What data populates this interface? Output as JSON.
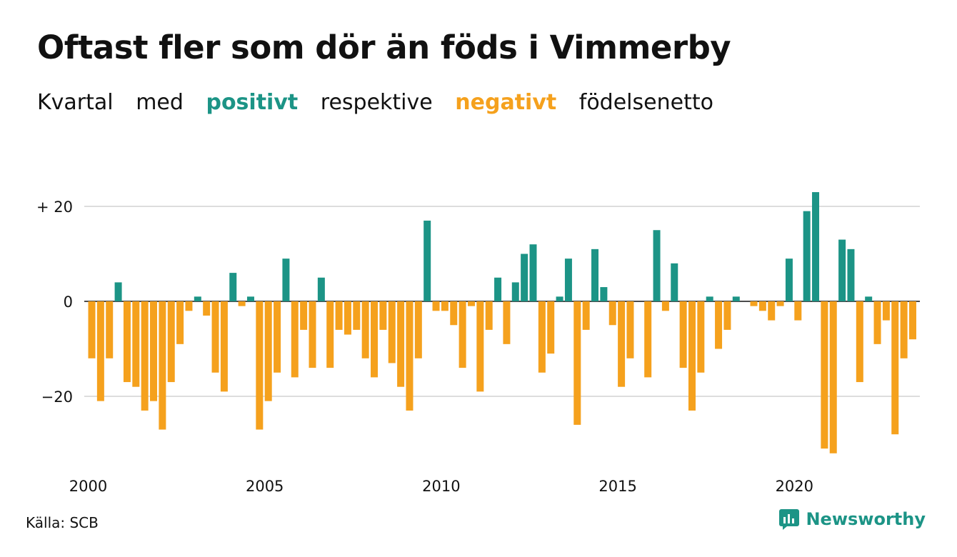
{
  "title": "Oftast fler som dör än föds i Vimmerby",
  "subtitle": {
    "part1": "Kvartal",
    "part2": "med",
    "positive": "positivt",
    "part3": "respektive",
    "negative": "negativt",
    "part4": "födelsenetto"
  },
  "colors": {
    "positive": "#1c9486",
    "negative": "#f5a11d",
    "grid": "#dddddd",
    "axis": "#111111"
  },
  "source": "Källa: SCB",
  "brand": {
    "name": "Newsworthy",
    "icon": "newsworthy-logo-icon"
  },
  "chart_data": {
    "type": "bar",
    "title": "Oftast fler som dör än föds i Vimmerby",
    "x_start": 2000,
    "periods_per_year": 4,
    "x_tick_labels": [
      "2000",
      "2005",
      "2010",
      "2015",
      "2020"
    ],
    "x_ticks": [
      2000,
      2005,
      2010,
      2015,
      2020
    ],
    "y_tick_labels": [
      "+ 20",
      "0",
      "−20"
    ],
    "y_ticks": [
      20,
      0,
      -20
    ],
    "ylim": [
      -33,
      25
    ],
    "grid": true,
    "series": [
      {
        "values": [
          -12,
          -21,
          -12,
          4,
          -17,
          -18,
          -23,
          -21,
          -27,
          -17,
          -9,
          -2,
          1,
          -3,
          -15,
          -19,
          6,
          -1,
          1,
          -27,
          -21,
          -15,
          9,
          -16,
          -6,
          -14,
          5,
          -14,
          -6,
          -7,
          -6,
          -12,
          -16,
          -6,
          -13,
          -18,
          -23,
          -12,
          17,
          -2,
          -2,
          -5,
          -14,
          -1,
          -19,
          -6,
          5,
          -9,
          4,
          10,
          12,
          -15,
          -11,
          1,
          9,
          -26,
          -6,
          11,
          3,
          -5,
          -18,
          -12,
          0,
          -16,
          15,
          -2,
          8,
          -14,
          -23,
          -15,
          1,
          -10,
          -6,
          1,
          0,
          -1,
          -2,
          -4,
          -1,
          9,
          -4,
          19,
          23,
          -31,
          -32,
          13,
          11,
          -17,
          1,
          -9,
          -4,
          -28,
          -12,
          -8
        ]
      }
    ]
  }
}
